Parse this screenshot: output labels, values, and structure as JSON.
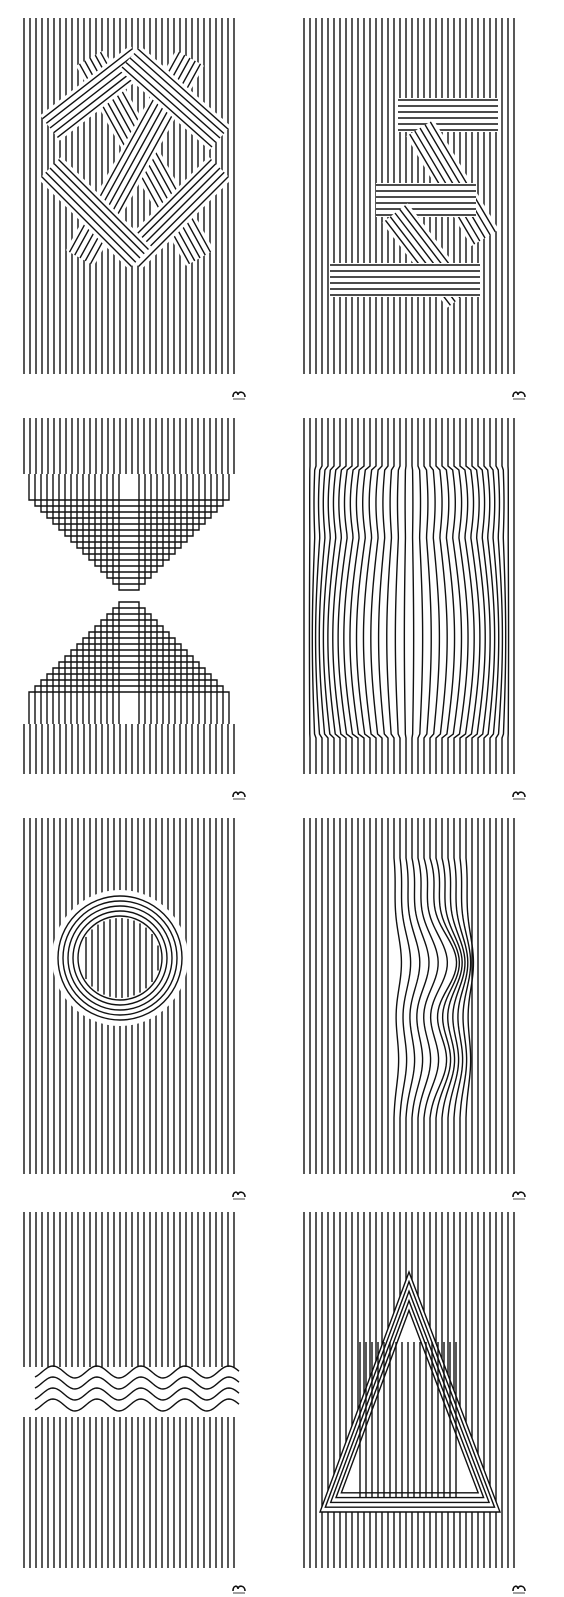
{
  "colors": {
    "line": "#111111",
    "background": "#ffffff"
  },
  "posters": [
    {
      "motif": "woven-x"
    },
    {
      "motif": "z-folded-band"
    },
    {
      "motif": "nested-arches"
    },
    {
      "motif": "vase"
    },
    {
      "motif": "ring"
    },
    {
      "motif": "waves-vertical"
    },
    {
      "motif": "wave-band"
    },
    {
      "motif": "triangle"
    }
  ],
  "logo_icon": "brand-mark-icon"
}
